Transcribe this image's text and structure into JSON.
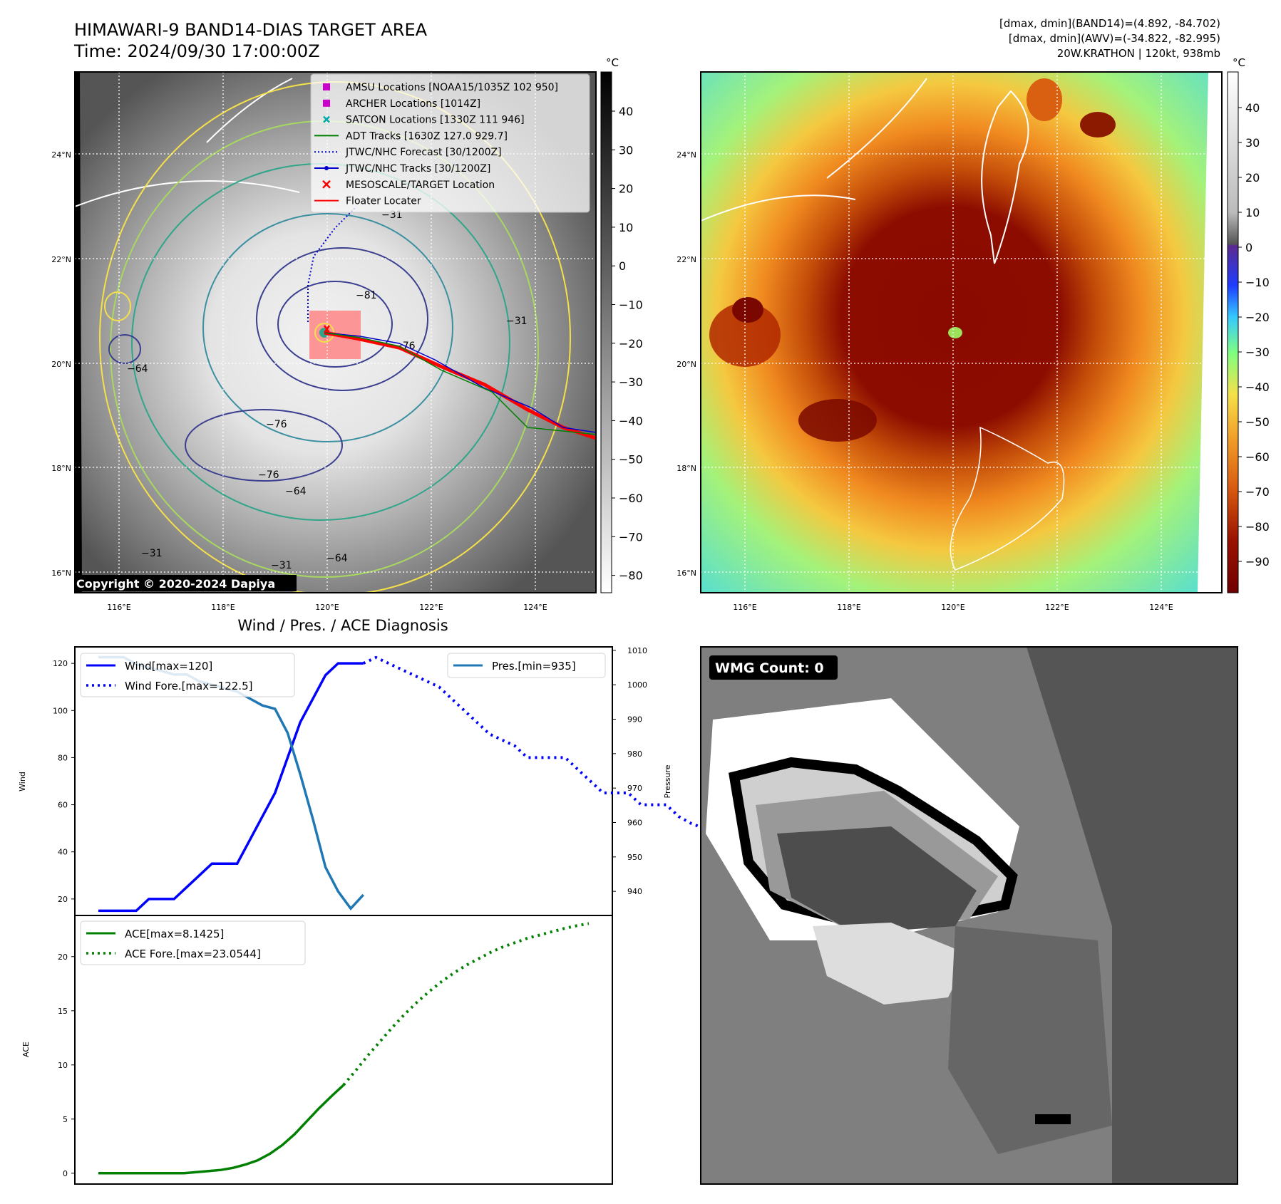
{
  "header": {
    "title_line1": "HIMAWARI-9 BAND14-DIAS TARGET AREA",
    "title_line2": "Time: 2024/09/30 17:00:00Z",
    "info_line1": "[dmax, dmin](BAND14)=(4.892, -84.702)",
    "info_line2": "[dmax, dmin](AWV)=(-34.822, -82.995)",
    "info_line3": "20W.KRATHON | 120kt, 938mb"
  },
  "colors": {
    "wind": "#0000ff",
    "pressure": "#1f77b4",
    "ace": "#008000",
    "adt": "#008000",
    "jtwc_forecast": "#0000cc",
    "jtwc_tracks": "#0000cc",
    "floater": "#ff0000",
    "amsu": "#cc00cc",
    "archer": "#cc00cc",
    "satcon": "#00aaaa"
  },
  "map_left": {
    "cbar_unit": "°C",
    "cbar_ticks": [
      "40",
      "30",
      "20",
      "10",
      "0",
      "−10",
      "−20",
      "−30",
      "−40",
      "−50",
      "−60",
      "−70",
      "−80"
    ],
    "lat_labels": [
      "24°N",
      "22°N",
      "20°N",
      "18°N",
      "16°N"
    ],
    "lon_labels": [
      "116°E",
      "118°E",
      "120°E",
      "122°E",
      "124°E"
    ],
    "copyright": "Copyright © 2020-2024 Dapiya",
    "contour_labels": [
      "−81",
      "−76",
      "−64",
      "−31",
      "−76",
      "−64",
      "−31",
      "−76",
      "−31",
      "−31",
      "−64"
    ],
    "legend": [
      {
        "label": "AMSU Locations [NOAA15/1035Z 102 950]",
        "marker": "square",
        "color": "#cc00cc"
      },
      {
        "label": "ARCHER Locations [1014Z]",
        "marker": "square",
        "color": "#cc00cc"
      },
      {
        "label": "SATCON Locations [1330Z 111 946]",
        "marker": "x",
        "color": "#00aaaa"
      },
      {
        "label": "ADT Tracks [1630Z 127.0 929.7]",
        "marker": "line",
        "color": "#008000"
      },
      {
        "label": "JTWC/NHC Forecast [30/1200Z]",
        "marker": "dotted",
        "color": "#0000cc"
      },
      {
        "label": "JTWC/NHC Tracks [30/1200Z]",
        "marker": "line-dot",
        "color": "#0000cc"
      },
      {
        "label": "MESOSCALE/TARGET Location",
        "marker": "bigx",
        "color": "#ff0000"
      },
      {
        "label": "Floater Locater",
        "marker": "line",
        "color": "#ff0000"
      }
    ]
  },
  "map_right": {
    "cbar_unit": "°C",
    "cbar_ticks": [
      "40",
      "30",
      "20",
      "10",
      "0",
      "−10",
      "−20",
      "−30",
      "−40",
      "−50",
      "−60",
      "−70",
      "−80",
      "−90"
    ],
    "lat_labels": [
      "24°N",
      "22°N",
      "20°N",
      "18°N",
      "16°N"
    ],
    "lon_labels": [
      "116°E",
      "118°E",
      "120°E",
      "122°E",
      "124°E"
    ]
  },
  "wmg": {
    "label": "WMG Count: 0"
  },
  "chart_data": [
    {
      "type": "line",
      "title": "Wind / Pres. / ACE Diagnosis",
      "ylabel": "Wind",
      "ylabel_right": "Pressure",
      "ylim": [
        13,
        127
      ],
      "ylim_right": [
        933,
        1011
      ],
      "yticks": [
        20,
        40,
        60,
        80,
        100,
        120
      ],
      "yticks_right": [
        940,
        950,
        960,
        970,
        980,
        990,
        1000,
        1010
      ],
      "legend_left": [
        "Wind[max=120]",
        "Wind Fore.[max=122.5]"
      ],
      "legend_right": [
        "Pres.[min=935]"
      ],
      "series": [
        {
          "name": "Wind[max=120]",
          "style": "solid",
          "values": [
            15,
            15,
            15,
            15,
            20,
            20,
            20,
            25,
            30,
            35,
            35,
            35,
            45,
            55,
            65,
            80,
            95,
            105,
            115,
            120,
            120,
            120
          ]
        },
        {
          "name": "Wind Fore.[max=122.5]",
          "style": "dotted",
          "offset": 21,
          "values": [
            120,
            122.5,
            120,
            117.5,
            115,
            112.5,
            110,
            105,
            100,
            95,
            90,
            87.5,
            85,
            80,
            80,
            80,
            80,
            75,
            70,
            65,
            65,
            65,
            60,
            60,
            60,
            55,
            52,
            50
          ]
        },
        {
          "name": "Pres.[min=935]",
          "style": "solid",
          "axis": "right",
          "values": [
            1008,
            1008,
            1008,
            1006,
            1005,
            1004,
            1003,
            1003,
            1001,
            1000,
            999,
            998,
            996,
            994,
            993,
            986,
            974,
            961,
            947,
            940,
            935,
            939
          ]
        }
      ]
    },
    {
      "type": "line",
      "ylabel": "ACE",
      "ylim": [
        -1,
        23.8
      ],
      "yticks": [
        0,
        5,
        10,
        15,
        20
      ],
      "legend": [
        "ACE[max=8.1425]",
        "ACE Fore.[max=23.0544]"
      ],
      "series": [
        {
          "name": "ACE[max=8.1425]",
          "style": "solid",
          "values": [
            0,
            0,
            0,
            0,
            0,
            0,
            0,
            0,
            0.1,
            0.2,
            0.3,
            0.5,
            0.8,
            1.2,
            1.8,
            2.6,
            3.6,
            4.8,
            6.0,
            7.1,
            8.1425
          ]
        },
        {
          "name": "ACE Fore.[max=23.0544]",
          "style": "dotted",
          "offset": 20,
          "values": [
            8.1425,
            9.5,
            10.9,
            12.2,
            13.5,
            14.7,
            15.8,
            16.8,
            17.7,
            18.5,
            19.2,
            19.8,
            20.4,
            20.9,
            21.3,
            21.7,
            22.0,
            22.3,
            22.6,
            22.85,
            23.0544
          ]
        }
      ]
    }
  ]
}
